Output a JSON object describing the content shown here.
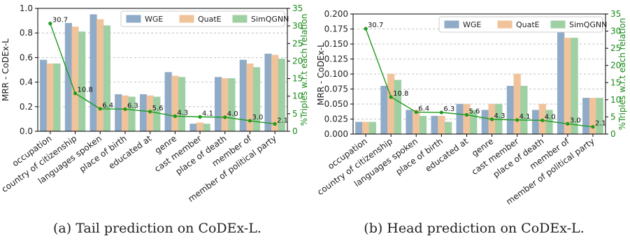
{
  "colors": {
    "WGE": "#8fabc8",
    "QuatE": "#f1c39a",
    "SimQGNN": "#9ed0a3",
    "pct_line": "#1e9a1e"
  },
  "chart_data": [
    {
      "type": "bar",
      "caption": "(a) Tail prediction on CoDEx-L.",
      "ylabel": "MRR - CoDEx-L",
      "y2label": "%Triples w.r.t each relation",
      "ylim": [
        0,
        1.0
      ],
      "yticks": [
        "0.0",
        "0.2",
        "0.4",
        "0.6",
        "0.8",
        "1.0"
      ],
      "y2lim": [
        0,
        35
      ],
      "y2ticks": [
        "0",
        "5",
        "10",
        "15",
        "20",
        "25",
        "30",
        "35"
      ],
      "legend": "top-right",
      "grid": true,
      "categories": [
        "occupation",
        "country of citizenship",
        "languages spoken",
        "place of birth",
        "educated at",
        "genre",
        "cast member",
        "place of death",
        "member of",
        "member of political party"
      ],
      "series": [
        {
          "name": "WGE",
          "values": [
            0.58,
            0.88,
            0.95,
            0.3,
            0.3,
            0.48,
            0.06,
            0.44,
            0.58,
            0.63
          ]
        },
        {
          "name": "QuatE",
          "values": [
            0.55,
            0.85,
            0.91,
            0.29,
            0.29,
            0.45,
            0.07,
            0.43,
            0.55,
            0.62
          ]
        },
        {
          "name": "SimQGNN",
          "values": [
            0.55,
            0.81,
            0.86,
            0.28,
            0.28,
            0.44,
            0.06,
            0.43,
            0.52,
            0.59
          ]
        }
      ],
      "line": {
        "values": [
          30.7,
          10.8,
          6.4,
          6.3,
          5.6,
          4.3,
          4.1,
          4.0,
          3.0,
          2.1
        ],
        "labels": [
          "30.7",
          "10.8",
          "6.4",
          "6.3",
          "5.6",
          "4.3",
          "4.1",
          "4.0",
          "3.0",
          "2.1"
        ]
      }
    },
    {
      "type": "bar",
      "caption": "(b) Head prediction on CoDEx-L.",
      "ylabel": "MRR - CoDEx-L",
      "y2label": "%Triples w.r.t each relation",
      "ylim": [
        0,
        0.2
      ],
      "yticks": [
        "0.000",
        "0.025",
        "0.050",
        "0.075",
        "0.100",
        "0.125",
        "0.150",
        "0.175",
        "0.200"
      ],
      "y2lim": [
        0,
        35
      ],
      "y2ticks": [
        "0",
        "5",
        "10",
        "15",
        "20",
        "25",
        "30",
        "35"
      ],
      "legend": "top-right",
      "grid": true,
      "categories": [
        "occupation",
        "country of citizenship",
        "languages spoken",
        "place of birth",
        "educated at",
        "genre",
        "cast member",
        "place of death",
        "member of",
        "member of political party"
      ],
      "series": [
        {
          "name": "WGE",
          "values": [
            0.02,
            0.08,
            0.04,
            0.03,
            0.05,
            0.04,
            0.08,
            0.04,
            0.17,
            0.06
          ]
        },
        {
          "name": "QuatE",
          "values": [
            0.02,
            0.1,
            0.04,
            0.03,
            0.05,
            0.05,
            0.1,
            0.05,
            0.16,
            0.06
          ]
        },
        {
          "name": "SimQGNN",
          "values": [
            0.02,
            0.09,
            0.03,
            0.02,
            0.04,
            0.05,
            0.08,
            0.04,
            0.16,
            0.06
          ]
        }
      ],
      "line": {
        "values": [
          30.7,
          10.8,
          6.4,
          6.3,
          5.6,
          4.3,
          4.1,
          4.0,
          3.0,
          2.1
        ],
        "labels": [
          "30.7",
          "10.8",
          "6.4",
          "6.3",
          "5.6",
          "4.3",
          "4.1",
          "4.0",
          "3.0",
          "2.1"
        ]
      }
    }
  ]
}
